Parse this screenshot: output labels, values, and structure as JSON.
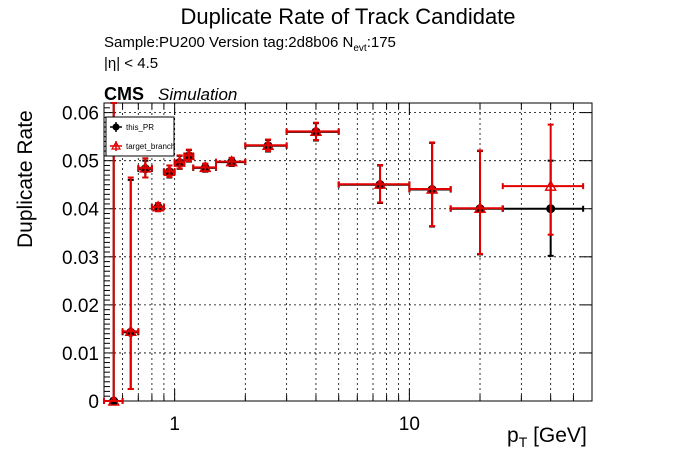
{
  "title": "Duplicate Rate of Track Candidate",
  "subtitle_line1": "Sample:PU200   Version tag:2d8b06",
  "nevt_label": "N",
  "nevt_sub": "evt",
  "nevt_value": ":175",
  "subtitle_line2": "|η| < 4.5",
  "cms_label": "CMS",
  "sim_label": "Simulation",
  "colors": {
    "this_PR": "#000000",
    "target_branch": "#e00000"
  },
  "chart_data": {
    "type": "scatter",
    "title": "Duplicate Rate of Track Candidate",
    "xlabel_main": "p",
    "xlabel_sub": "T",
    "xlabel_unit": " [GeV]",
    "ylabel": "Duplicate Rate",
    "xscale": "log",
    "xlim": [
      0.5,
      60
    ],
    "ylim": [
      0,
      0.062
    ],
    "grid": true,
    "legend_position": "top-left",
    "yticks": [
      0,
      0.01,
      0.02,
      0.03,
      0.04,
      0.05,
      0.06
    ],
    "yticklabels": [
      "0",
      "0.01",
      "0.02",
      "0.03",
      "0.04",
      "0.05",
      "0.06"
    ],
    "xticks": [
      1,
      10
    ],
    "xticklabels": [
      "1",
      "10"
    ],
    "series": [
      {
        "name": "this_PR",
        "marker": "circle",
        "points": [
          {
            "x": 0.55,
            "xlo": 0.5,
            "xhi": 0.6,
            "y": 0.0,
            "ylo": 0.0,
            "yhi": 0.062
          },
          {
            "x": 0.65,
            "xlo": 0.6,
            "xhi": 0.7,
            "y": 0.0143,
            "ylo": 0.0025,
            "yhi": 0.046
          },
          {
            "x": 0.75,
            "xlo": 0.7,
            "xhi": 0.8,
            "y": 0.0483,
            "ylo": 0.0465,
            "yhi": 0.05
          },
          {
            "x": 0.85,
            "xlo": 0.8,
            "xhi": 0.9,
            "y": 0.0403,
            "ylo": 0.0395,
            "yhi": 0.041
          },
          {
            "x": 0.95,
            "xlo": 0.9,
            "xhi": 1.0,
            "y": 0.0477,
            "ylo": 0.0465,
            "yhi": 0.049
          },
          {
            "x": 1.05,
            "xlo": 1.0,
            "xhi": 1.1,
            "y": 0.0496,
            "ylo": 0.0483,
            "yhi": 0.051
          },
          {
            "x": 1.15,
            "xlo": 1.1,
            "xhi": 1.2,
            "y": 0.051,
            "ylo": 0.0498,
            "yhi": 0.0522
          },
          {
            "x": 1.35,
            "xlo": 1.2,
            "xhi": 1.5,
            "y": 0.0485,
            "ylo": 0.0477,
            "yhi": 0.0493
          },
          {
            "x": 1.75,
            "xlo": 1.5,
            "xhi": 2.0,
            "y": 0.0497,
            "ylo": 0.0489,
            "yhi": 0.0505
          },
          {
            "x": 2.5,
            "xlo": 2.0,
            "xhi": 3.0,
            "y": 0.0531,
            "ylo": 0.0519,
            "yhi": 0.0543
          },
          {
            "x": 4.0,
            "xlo": 3.0,
            "xhi": 5.0,
            "y": 0.056,
            "ylo": 0.0542,
            "yhi": 0.0578
          },
          {
            "x": 7.5,
            "xlo": 5.0,
            "xhi": 10.0,
            "y": 0.045,
            "ylo": 0.0412,
            "yhi": 0.049
          },
          {
            "x": 12.5,
            "xlo": 10.0,
            "xhi": 15.0,
            "y": 0.044,
            "ylo": 0.0363,
            "yhi": 0.0537
          },
          {
            "x": 20.0,
            "xlo": 15.0,
            "xhi": 25.0,
            "y": 0.04,
            "ylo": 0.0305,
            "yhi": 0.052
          },
          {
            "x": 40.0,
            "xlo": 25.0,
            "xhi": 55.0,
            "y": 0.04,
            "ylo": 0.0302,
            "yhi": 0.05
          }
        ]
      },
      {
        "name": "target_branch",
        "marker": "triangle",
        "points": [
          {
            "x": 0.55,
            "xlo": 0.5,
            "xhi": 0.6,
            "y": 0.0,
            "ylo": 0.0,
            "yhi": 0.062
          },
          {
            "x": 0.65,
            "xlo": 0.6,
            "xhi": 0.7,
            "y": 0.0145,
            "ylo": 0.0025,
            "yhi": 0.0465
          },
          {
            "x": 0.75,
            "xlo": 0.7,
            "xhi": 0.8,
            "y": 0.0485,
            "ylo": 0.0465,
            "yhi": 0.0505
          },
          {
            "x": 0.85,
            "xlo": 0.8,
            "xhi": 0.9,
            "y": 0.0404,
            "ylo": 0.0395,
            "yhi": 0.0412
          },
          {
            "x": 0.95,
            "xlo": 0.9,
            "xhi": 1.0,
            "y": 0.0478,
            "ylo": 0.0466,
            "yhi": 0.049
          },
          {
            "x": 1.05,
            "xlo": 1.0,
            "xhi": 1.1,
            "y": 0.0497,
            "ylo": 0.0484,
            "yhi": 0.0511
          },
          {
            "x": 1.15,
            "xlo": 1.1,
            "xhi": 1.2,
            "y": 0.0511,
            "ylo": 0.0499,
            "yhi": 0.0523
          },
          {
            "x": 1.35,
            "xlo": 1.2,
            "xhi": 1.5,
            "y": 0.0486,
            "ylo": 0.0478,
            "yhi": 0.0494
          },
          {
            "x": 1.75,
            "xlo": 1.5,
            "xhi": 2.0,
            "y": 0.0498,
            "ylo": 0.049,
            "yhi": 0.0506
          },
          {
            "x": 2.5,
            "xlo": 2.0,
            "xhi": 3.0,
            "y": 0.0532,
            "ylo": 0.052,
            "yhi": 0.0544
          },
          {
            "x": 4.0,
            "xlo": 3.0,
            "xhi": 5.0,
            "y": 0.0561,
            "ylo": 0.0543,
            "yhi": 0.0579
          },
          {
            "x": 7.5,
            "xlo": 5.0,
            "xhi": 10.0,
            "y": 0.0451,
            "ylo": 0.0413,
            "yhi": 0.0491
          },
          {
            "x": 12.5,
            "xlo": 10.0,
            "xhi": 15.0,
            "y": 0.0441,
            "ylo": 0.0364,
            "yhi": 0.0538
          },
          {
            "x": 20.0,
            "xlo": 15.0,
            "xhi": 25.0,
            "y": 0.0401,
            "ylo": 0.0306,
            "yhi": 0.0521
          },
          {
            "x": 40.0,
            "xlo": 25.0,
            "xhi": 55.0,
            "y": 0.0447,
            "ylo": 0.0346,
            "yhi": 0.0575
          }
        ]
      }
    ]
  }
}
